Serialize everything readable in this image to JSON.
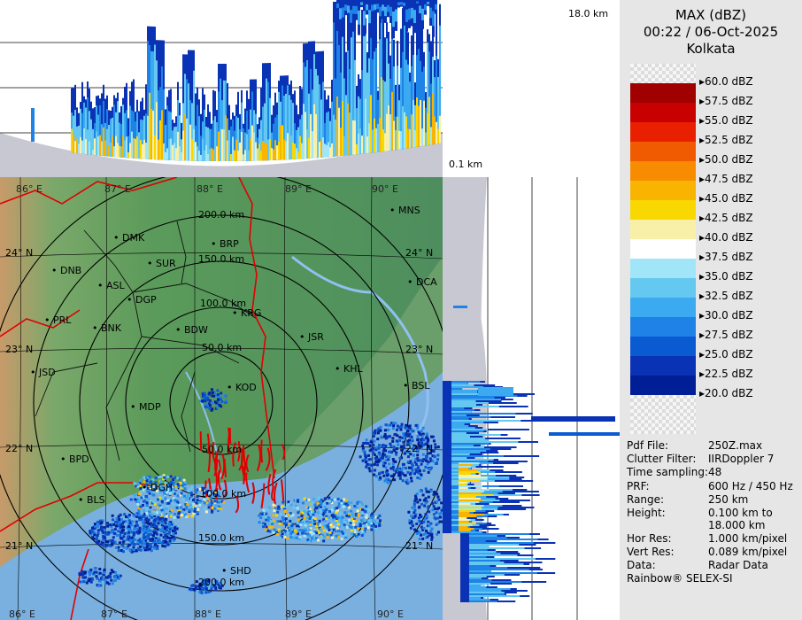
{
  "header": {
    "title": "MAX (dBZ)",
    "datetime": "00:22 / 06-Oct-2025",
    "station": "Kolkata"
  },
  "heights": {
    "top_km": "18.0 km",
    "bottom_km": "0.1 km"
  },
  "legend": [
    {
      "label": "60.0 dBZ",
      "color": "checker"
    },
    {
      "label": "57.5 dBZ",
      "color": "#a00000"
    },
    {
      "label": "55.0 dBZ",
      "color": "#c80000"
    },
    {
      "label": "52.5 dBZ",
      "color": "#e82000"
    },
    {
      "label": "50.0 dBZ",
      "color": "#f05a00"
    },
    {
      "label": "47.5 dBZ",
      "color": "#f88c00"
    },
    {
      "label": "45.0 dBZ",
      "color": "#f8b400"
    },
    {
      "label": "42.5 dBZ",
      "color": "#f8d800"
    },
    {
      "label": "40.0 dBZ",
      "color": "#f8f0a8"
    },
    {
      "label": "37.5 dBZ",
      "color": "#ffffff"
    },
    {
      "label": "35.0 dBZ",
      "color": "#a0e6f8"
    },
    {
      "label": "32.5 dBZ",
      "color": "#64c8f0"
    },
    {
      "label": "30.0 dBZ",
      "color": "#3caaf0"
    },
    {
      "label": "27.5 dBZ",
      "color": "#1e82e6"
    },
    {
      "label": "25.0 dBZ",
      "color": "#0a5ad2"
    },
    {
      "label": "22.5 dBZ",
      "color": "#0a32b4"
    },
    {
      "label": "20.0 dBZ",
      "color": "#001e96"
    }
  ],
  "info": [
    {
      "key": "Pdf File:",
      "value": "250Z.max"
    },
    {
      "key": "Clutter Filter:",
      "value": "IIRDoppler 7"
    },
    {
      "key": "Time sampling:",
      "value": "48"
    },
    {
      "key": "PRF:",
      "value": "600 Hz / 450 Hz"
    },
    {
      "key": "Range:",
      "value": "250 km"
    },
    {
      "key": "Height:",
      "value": "0.100 km to"
    },
    {
      "key": "",
      "value": "18.000 km"
    },
    {
      "key": "Hor Res:",
      "value": "1.000 km/pixel"
    },
    {
      "key": "Vert Res:",
      "value": "0.089 km/pixel"
    },
    {
      "key": "Data:",
      "value": "Radar Data"
    }
  ],
  "footer": "Rainbow® SELEX-SI",
  "map": {
    "lon_labels": [
      "86° E",
      "87° E",
      "88° E",
      "89° E",
      "90° E"
    ],
    "lat_labels": [
      "24° N",
      "23° N",
      "22° N",
      "21° N"
    ],
    "range_labels": [
      "50.0 km",
      "100.0 km",
      "150.0 km",
      "200.0 km"
    ],
    "range_labels_lower": [
      "50.0 km",
      "100.0 km",
      "150.0 km",
      "200.0 km"
    ],
    "stations": [
      "MNS",
      "DMK",
      "BRP",
      "DNB",
      "SUR",
      "DCA",
      "ASL",
      "DGP",
      "KRG",
      "PRL",
      "BNK",
      "BDW",
      "JSR",
      "JSD",
      "KHL",
      "BSL",
      "KOD",
      "MDP",
      "BPD",
      "DGH",
      "BLS",
      "SHD"
    ]
  },
  "colors": {
    "land_green": "#5f9a5a",
    "sea_blue": "#7ab0e0",
    "ring": "#000000",
    "border_red": "#e00000",
    "side_grey": "#c8c8c8"
  }
}
